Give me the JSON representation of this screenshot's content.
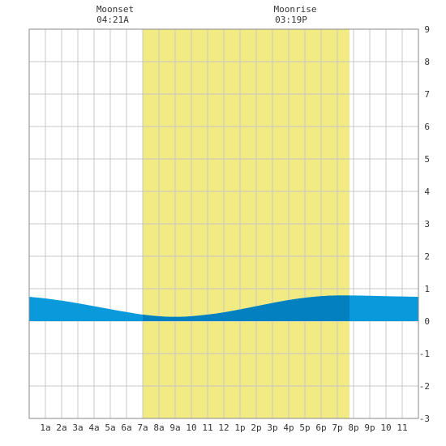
{
  "chart_data": {
    "type": "area",
    "title": "",
    "xlabel": "",
    "ylabel": "",
    "x_tick_labels": [
      "1a",
      "2a",
      "3a",
      "4a",
      "5a",
      "6a",
      "7a",
      "8a",
      "9a",
      "10",
      "11",
      "12",
      "1p",
      "2p",
      "3p",
      "4p",
      "5p",
      "6p",
      "7p",
      "8p",
      "9p",
      "10",
      "11"
    ],
    "y_tick_labels": [
      "-3",
      "-2",
      "-1",
      "0",
      "1",
      "2",
      "3",
      "4",
      "5",
      "6",
      "7",
      "8",
      "9"
    ],
    "xlim": [
      0,
      24
    ],
    "ylim": [
      -3,
      9
    ],
    "grid": true,
    "daylight": {
      "start_hour": 7.0,
      "end_hour": 19.75
    },
    "moon_events": [
      {
        "name": "Moonset",
        "time": "04:21A"
      },
      {
        "name": "Moonrise",
        "time": "03:19P"
      }
    ],
    "series": [
      {
        "x": [
          0,
          1,
          2,
          3,
          4,
          5,
          6,
          7,
          8,
          9,
          10,
          11,
          12,
          13,
          14,
          15,
          16,
          17,
          18,
          19,
          20,
          21,
          22,
          23,
          24
        ],
        "values": [
          0.75,
          0.7,
          0.63,
          0.55,
          0.46,
          0.37,
          0.28,
          0.2,
          0.15,
          0.13,
          0.15,
          0.2,
          0.27,
          0.36,
          0.46,
          0.56,
          0.65,
          0.72,
          0.77,
          0.79,
          0.79,
          0.78,
          0.77,
          0.76,
          0.75
        ]
      }
    ],
    "colors": {
      "daylight": "#f2ea82",
      "water_day": "#0280bf",
      "water_night": "#0a9adb",
      "grid": "#c8c8c8",
      "frame": "#888888"
    }
  }
}
